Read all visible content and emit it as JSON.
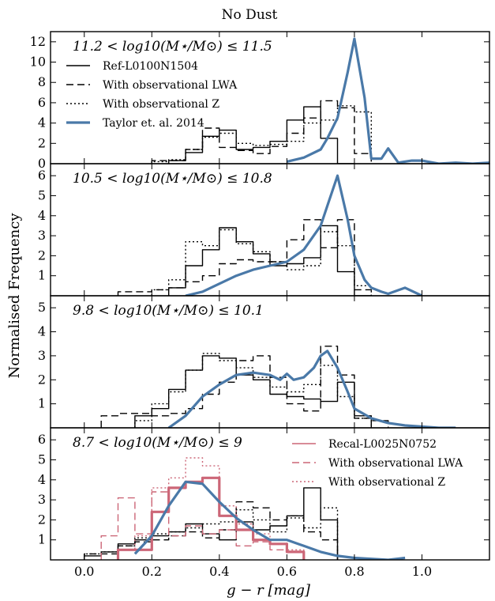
{
  "figure": {
    "title": "No Dust",
    "xlabel": "g − r [mag]",
    "ylabel": "Normalised Frequency"
  },
  "colors": {
    "ref": "#000000",
    "taylor": "#4a79a8",
    "recal": "#cc6677"
  },
  "chart_data": [
    {
      "type": "line",
      "panel_label": "11.2 < log10(M⋆/M⊙) ≤ 11.5",
      "xlim": [
        -0.1,
        1.2
      ],
      "ylim": [
        0,
        13
      ],
      "yticks": [
        0,
        2,
        4,
        6,
        8,
        10,
        12
      ],
      "legend": [
        {
          "label": "Ref-L0100N1504",
          "style": "solid",
          "color": "#000000"
        },
        {
          "label": "With observational LWA",
          "style": "dashed",
          "color": "#000000"
        },
        {
          "label": "With observational Z",
          "style": "dotted",
          "color": "#000000"
        },
        {
          "label": "Taylor et. al. 2014",
          "style": "thick",
          "color": "#4a79a8"
        }
      ],
      "legend_position": "top-left",
      "series": [
        {
          "name": "Ref-L0100N1504",
          "kind": "step",
          "style": "solid",
          "color": "#000000",
          "edges": [
            0.25,
            0.3,
            0.35,
            0.4,
            0.45,
            0.5,
            0.55,
            0.6,
            0.65,
            0.7,
            0.75,
            0.8
          ],
          "values": [
            0.3,
            1.1,
            2.7,
            3.3,
            1.4,
            1.6,
            2.2,
            4.3,
            5.6,
            2.5,
            0.0
          ]
        },
        {
          "name": "With observational LWA",
          "kind": "step",
          "style": "dashed",
          "color": "#000000",
          "edges": [
            0.2,
            0.25,
            0.3,
            0.35,
            0.4,
            0.45,
            0.5,
            0.55,
            0.6,
            0.65,
            0.7,
            0.75,
            0.8,
            0.85
          ],
          "values": [
            0.3,
            0.3,
            1.4,
            3.5,
            1.6,
            1.3,
            1.0,
            1.7,
            3.0,
            4.5,
            6.2,
            5.5,
            1.0
          ]
        },
        {
          "name": "With observational Z",
          "kind": "step",
          "style": "dotted",
          "color": "#000000",
          "edges": [
            0.2,
            0.25,
            0.3,
            0.35,
            0.4,
            0.45,
            0.5,
            0.55,
            0.6,
            0.65,
            0.7,
            0.75,
            0.8,
            0.85
          ],
          "values": [
            0.2,
            0.4,
            1.4,
            2.6,
            3.0,
            2.0,
            1.8,
            1.9,
            2.2,
            4.0,
            4.3,
            5.7,
            5.1,
            0.0
          ]
        },
        {
          "name": "Taylor et. al. 2014",
          "kind": "curve",
          "style": "thick",
          "color": "#4a79a8",
          "x": [
            0.6,
            0.65,
            0.7,
            0.72,
            0.75,
            0.78,
            0.8,
            0.83,
            0.85,
            0.88,
            0.9,
            0.93,
            0.97,
            1.0,
            1.05,
            1.1,
            1.15,
            1.2
          ],
          "y": [
            0.2,
            0.6,
            1.4,
            2.5,
            4.5,
            9.0,
            12.3,
            6.5,
            0.5,
            0.5,
            1.5,
            0.1,
            0.3,
            0.3,
            0.0,
            0.1,
            0.0,
            0.1
          ]
        }
      ]
    },
    {
      "type": "line",
      "panel_label": "10.5 < log10(M⋆/M⊙) ≤ 10.8",
      "xlim": [
        -0.1,
        1.2
      ],
      "ylim": [
        0,
        6.6
      ],
      "yticks": [
        0,
        1,
        2,
        3,
        4,
        5,
        6
      ],
      "series": [
        {
          "name": "Ref-L0100N1504",
          "kind": "step",
          "style": "solid",
          "color": "#000000",
          "edges": [
            0.25,
            0.3,
            0.35,
            0.4,
            0.45,
            0.5,
            0.55,
            0.6,
            0.65,
            0.7,
            0.75,
            0.8,
            0.85
          ],
          "values": [
            0.4,
            1.5,
            2.3,
            3.4,
            2.7,
            2.1,
            1.5,
            1.6,
            1.9,
            3.5,
            1.2,
            0.0
          ]
        },
        {
          "name": "With observational LWA",
          "kind": "step",
          "style": "dashed",
          "color": "#000000",
          "edges": [
            0.1,
            0.15,
            0.2,
            0.25,
            0.3,
            0.35,
            0.4,
            0.45,
            0.5,
            0.55,
            0.6,
            0.65,
            0.7,
            0.75,
            0.8,
            0.85
          ],
          "values": [
            0.2,
            0.2,
            0.3,
            0.4,
            0.7,
            1.0,
            1.6,
            1.8,
            1.7,
            1.7,
            2.8,
            3.8,
            2.4,
            3.8,
            0.3
          ]
        },
        {
          "name": "With observational Z",
          "kind": "step",
          "style": "dotted",
          "color": "#000000",
          "edges": [
            0.2,
            0.25,
            0.3,
            0.35,
            0.4,
            0.45,
            0.5,
            0.55,
            0.6,
            0.65,
            0.7,
            0.75,
            0.8,
            0.85
          ],
          "values": [
            0.3,
            0.8,
            2.7,
            2.5,
            3.3,
            2.6,
            2.2,
            1.7,
            1.3,
            1.5,
            3.2,
            2.5,
            0.5
          ]
        },
        {
          "name": "Taylor et. al. 2014",
          "kind": "curve",
          "style": "thick",
          "color": "#4a79a8",
          "x": [
            0.3,
            0.35,
            0.4,
            0.45,
            0.5,
            0.55,
            0.6,
            0.65,
            0.7,
            0.72,
            0.75,
            0.78,
            0.8,
            0.83,
            0.85,
            0.88,
            0.9,
            0.95,
            1.0
          ],
          "y": [
            0.0,
            0.2,
            0.6,
            1.0,
            1.3,
            1.5,
            1.7,
            2.3,
            3.5,
            4.5,
            6.0,
            3.8,
            2.0,
            0.8,
            0.4,
            0.2,
            0.1,
            0.4,
            0.0
          ]
        }
      ]
    },
    {
      "type": "line",
      "panel_label": "9.8 < log10(M⋆/M⊙) ≤ 10.1",
      "xlim": [
        -0.1,
        1.2
      ],
      "ylim": [
        0,
        5.5
      ],
      "yticks": [
        0,
        1,
        2,
        3,
        4,
        5
      ],
      "series": [
        {
          "name": "Ref-L0100N1504",
          "kind": "step",
          "style": "solid",
          "color": "#000000",
          "edges": [
            0.15,
            0.2,
            0.25,
            0.3,
            0.35,
            0.4,
            0.45,
            0.5,
            0.55,
            0.6,
            0.65,
            0.7,
            0.75,
            0.8,
            0.85
          ],
          "values": [
            0.5,
            0.8,
            1.6,
            2.4,
            3.0,
            2.9,
            2.2,
            2.0,
            1.4,
            1.3,
            1.2,
            1.1,
            1.9,
            0.5
          ]
        },
        {
          "name": "With observational LWA",
          "kind": "step",
          "style": "dashed",
          "color": "#000000",
          "edges": [
            0.05,
            0.1,
            0.15,
            0.2,
            0.25,
            0.3,
            0.35,
            0.4,
            0.45,
            0.5,
            0.55,
            0.6,
            0.65,
            0.7,
            0.75,
            0.8,
            0.85,
            0.9
          ],
          "values": [
            0.5,
            0.6,
            0.6,
            0.5,
            0.6,
            0.8,
            1.4,
            1.9,
            2.8,
            3.0,
            2.1,
            1.0,
            0.7,
            3.4,
            2.2,
            0.4,
            0.3
          ]
        },
        {
          "name": "With observational Z",
          "kind": "step",
          "style": "dotted",
          "color": "#000000",
          "edges": [
            0.15,
            0.2,
            0.25,
            0.3,
            0.35,
            0.4,
            0.45,
            0.5,
            0.55,
            0.6,
            0.65,
            0.7,
            0.75,
            0.8,
            0.85
          ],
          "values": [
            0.3,
            1.0,
            1.5,
            2.4,
            3.1,
            2.8,
            2.5,
            2.1,
            1.7,
            1.5,
            1.8,
            2.6,
            1.3,
            0.4
          ]
        },
        {
          "name": "Taylor et. al. 2014",
          "kind": "curve",
          "style": "thick",
          "color": "#4a79a8",
          "x": [
            0.25,
            0.3,
            0.35,
            0.4,
            0.45,
            0.5,
            0.55,
            0.58,
            0.6,
            0.62,
            0.65,
            0.68,
            0.7,
            0.72,
            0.75,
            0.78,
            0.8,
            0.85,
            0.9,
            0.95,
            1.0,
            1.05,
            1.1
          ],
          "y": [
            0.0,
            0.5,
            1.3,
            1.8,
            2.2,
            2.3,
            2.2,
            2.0,
            2.25,
            2.0,
            2.1,
            2.5,
            3.0,
            3.2,
            2.5,
            1.5,
            0.8,
            0.4,
            0.2,
            0.1,
            0.05,
            0.0,
            0.0
          ]
        }
      ]
    },
    {
      "type": "line",
      "panel_label": "8.7 < log10(M⋆/M⊙) ≤ 9",
      "xlim": [
        -0.1,
        1.2
      ],
      "ylim": [
        0,
        6.6
      ],
      "yticks": [
        0,
        1,
        2,
        3,
        4,
        5,
        6
      ],
      "legend": [
        {
          "label": "Recal-L0025N0752",
          "style": "solid",
          "color": "#cc6677"
        },
        {
          "label": "With observational LWA",
          "style": "dashed",
          "color": "#cc6677"
        },
        {
          "label": "With observational Z",
          "style": "dotted",
          "color": "#cc6677"
        }
      ],
      "legend_position": "top-right",
      "xticks": [
        0.0,
        0.2,
        0.4,
        0.6,
        0.8,
        1.0
      ],
      "xticklabels": [
        "0.0",
        "0.2",
        "0.4",
        "0.6",
        "0.8",
        "1.0"
      ],
      "series": [
        {
          "name": "Ref-L0100N1504",
          "kind": "step",
          "style": "solid",
          "color": "#000000",
          "edges": [
            0.0,
            0.05,
            0.1,
            0.15,
            0.2,
            0.25,
            0.3,
            0.35,
            0.4,
            0.45,
            0.5,
            0.55,
            0.6,
            0.65,
            0.7,
            0.75
          ],
          "values": [
            0.2,
            0.4,
            0.8,
            1.0,
            1.2,
            1.4,
            1.8,
            1.3,
            1.0,
            1.9,
            1.5,
            1.7,
            2.2,
            3.6,
            2.0
          ]
        },
        {
          "name": "With observational LWA",
          "kind": "step",
          "style": "dashed",
          "color": "#000000",
          "edges": [
            0.0,
            0.05,
            0.1,
            0.15,
            0.2,
            0.25,
            0.3,
            0.35,
            0.4,
            0.45,
            0.5,
            0.55,
            0.6,
            0.65,
            0.7,
            0.75
          ],
          "values": [
            0.3,
            0.3,
            0.7,
            0.9,
            1.0,
            1.2,
            1.4,
            1.1,
            1.5,
            2.9,
            2.6,
            2.0,
            2.2,
            1.4,
            1.0
          ]
        },
        {
          "name": "With observational Z",
          "kind": "step",
          "style": "dotted",
          "color": "#000000",
          "edges": [
            0.0,
            0.05,
            0.1,
            0.15,
            0.2,
            0.25,
            0.3,
            0.35,
            0.4,
            0.45,
            0.5,
            0.55,
            0.6,
            0.65,
            0.7,
            0.75
          ],
          "values": [
            0.3,
            0.4,
            0.7,
            1.1,
            1.3,
            1.4,
            1.6,
            1.8,
            1.9,
            2.5,
            2.0,
            1.4,
            2.1,
            1.6,
            2.6
          ]
        },
        {
          "name": "Recal-L0025N0752",
          "kind": "step",
          "style": "thicksolid",
          "color": "#cc6677",
          "edges": [
            0.1,
            0.15,
            0.2,
            0.25,
            0.3,
            0.35,
            0.4,
            0.45,
            0.5,
            0.55,
            0.6,
            0.65
          ],
          "values": [
            0.5,
            0.5,
            2.4,
            3.6,
            3.9,
            4.1,
            2.2,
            1.5,
            1.0,
            0.8,
            0.4
          ]
        },
        {
          "name": "With observational LWA",
          "kind": "step",
          "style": "dashed",
          "color": "#cc6677",
          "edges": [
            0.05,
            0.1,
            0.15,
            0.2,
            0.25,
            0.3,
            0.35,
            0.4,
            0.45,
            0.5,
            0.55,
            0.6,
            0.65
          ],
          "values": [
            1.2,
            3.1,
            1.3,
            3.4,
            1.2,
            1.7,
            1.3,
            1.5,
            0.7,
            0.9,
            0.5,
            0.4
          ]
        },
        {
          "name": "With observational Z",
          "kind": "step",
          "style": "dotted",
          "color": "#cc6677",
          "edges": [
            0.1,
            0.15,
            0.2,
            0.25,
            0.3,
            0.35,
            0.4,
            0.45,
            0.5,
            0.55,
            0.6,
            0.65
          ],
          "values": [
            0.5,
            1.2,
            3.6,
            4.1,
            5.1,
            4.7,
            2.7,
            1.8,
            1.3,
            1.0,
            0.5
          ]
        },
        {
          "name": "Taylor et. al. 2014",
          "kind": "curve",
          "style": "thick",
          "color": "#4a79a8",
          "x": [
            0.15,
            0.2,
            0.25,
            0.3,
            0.35,
            0.4,
            0.45,
            0.5,
            0.55,
            0.6,
            0.65,
            0.7,
            0.75,
            0.8,
            0.85,
            0.9,
            0.95
          ],
          "y": [
            0.3,
            1.2,
            2.7,
            3.9,
            3.8,
            2.9,
            2.1,
            1.5,
            1.0,
            1.0,
            0.7,
            0.4,
            0.2,
            0.1,
            0.05,
            0.0,
            0.1
          ]
        }
      ]
    }
  ]
}
